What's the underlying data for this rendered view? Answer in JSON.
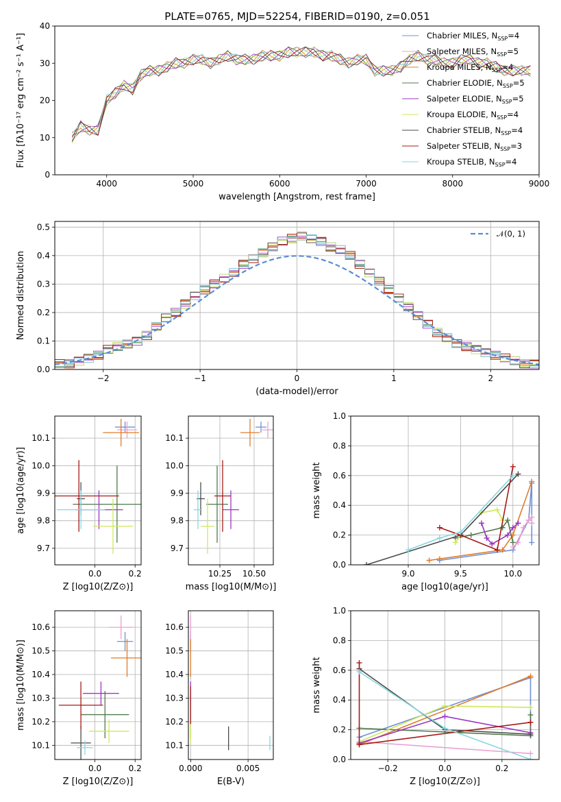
{
  "title": "PLATE=0765, MJD=52254, FIBERID=0190, z=0.051",
  "series_colors": [
    "#6f8fd6",
    "#e8a0d0",
    "#e07b28",
    "#4f7a4a",
    "#9b35c0",
    "#cfe85a",
    "#4a4a4a",
    "#a81818",
    "#86d6e0"
  ],
  "chart_data": [
    {
      "id": "spectrum",
      "type": "line",
      "xlabel": "wavelength [Angstrom, rest frame]",
      "ylabel": "Flux [fλ10⁻¹⁷ erg cm⁻² s⁻¹ A⁻¹]",
      "xlim": [
        3400,
        9000
      ],
      "ylim": [
        0,
        40
      ],
      "xticks": [
        4000,
        5000,
        6000,
        7000,
        8000,
        9000
      ],
      "yticks": [
        0,
        10,
        20,
        30,
        40
      ],
      "grid": false,
      "legend_position": "top-right",
      "x": [
        3600,
        3700,
        3800,
        3900,
        4000,
        4100,
        4200,
        4300,
        4400,
        4500,
        4600,
        4700,
        4800,
        4900,
        5000,
        5100,
        5200,
        5300,
        5400,
        5500,
        5600,
        5700,
        5800,
        5900,
        6000,
        6100,
        6200,
        6300,
        6400,
        6500,
        6600,
        6700,
        6800,
        6900,
        7000,
        7100,
        7200,
        7300,
        7400,
        7500,
        7600,
        7700,
        7800,
        7900,
        8000,
        8100,
        8200,
        8300,
        8400,
        8500,
        8600,
        8700,
        8800,
        8900
      ],
      "y": [
        10,
        13,
        12,
        12,
        20,
        22,
        24,
        23,
        27,
        28,
        28,
        29,
        30,
        30,
        31,
        31,
        30,
        31,
        32,
        31,
        31,
        31,
        32,
        32,
        32,
        33,
        33,
        33,
        33,
        32,
        32,
        31,
        30,
        31,
        31,
        28,
        28,
        28,
        29,
        31,
        32,
        31,
        31,
        30,
        30,
        31,
        31,
        30,
        30,
        29,
        28,
        28,
        28,
        28
      ],
      "series": [
        {
          "name": "Chabrier MILES, N",
          "sub": "SSP",
          "suffix": "=4"
        },
        {
          "name": "Salpeter MILES, N",
          "sub": "SSP",
          "suffix": "=5"
        },
        {
          "name": "Kroupa MILES, N",
          "sub": "SSP",
          "suffix": "=4"
        },
        {
          "name": "Chabrier ELODIE, N",
          "sub": "SSP",
          "suffix": "=5"
        },
        {
          "name": "Salpeter ELODIE, N",
          "sub": "SSP",
          "suffix": "=5"
        },
        {
          "name": "Kroupa ELODIE, N",
          "sub": "SSP",
          "suffix": "=4"
        },
        {
          "name": "Chabrier STELIB, N",
          "sub": "SSP",
          "suffix": "=4"
        },
        {
          "name": "Salpeter STELIB, N",
          "sub": "SSP",
          "suffix": "=3"
        },
        {
          "name": "Kroupa STELIB, N",
          "sub": "SSP",
          "suffix": "=4"
        }
      ]
    },
    {
      "id": "residuals",
      "type": "line",
      "xlabel": "(data-model)/error",
      "ylabel": "Normed distribution",
      "xlim": [
        -2.5,
        2.5
      ],
      "ylim": [
        0,
        0.52
      ],
      "xticks": [
        -2,
        -1,
        0,
        1,
        2
      ],
      "yticks": [
        0.0,
        0.1,
        0.2,
        0.3,
        0.4,
        0.5
      ],
      "grid": true,
      "legend_position": "top-right",
      "legend": [
        "𝒩(0, 1)"
      ],
      "x": [
        -2.45,
        -2.35,
        -2.25,
        -2.15,
        -2.05,
        -1.95,
        -1.85,
        -1.75,
        -1.65,
        -1.55,
        -1.45,
        -1.35,
        -1.25,
        -1.15,
        -1.05,
        -0.95,
        -0.85,
        -0.75,
        -0.65,
        -0.55,
        -0.45,
        -0.35,
        -0.25,
        -0.15,
        -0.05,
        0.05,
        0.15,
        0.25,
        0.35,
        0.45,
        0.55,
        0.65,
        0.75,
        0.85,
        0.95,
        1.05,
        1.15,
        1.25,
        1.35,
        1.45,
        1.55,
        1.65,
        1.75,
        1.85,
        1.95,
        2.05,
        2.15,
        2.25,
        2.35,
        2.45
      ],
      "y": [
        0.02,
        0.02,
        0.03,
        0.04,
        0.05,
        0.07,
        0.08,
        0.09,
        0.1,
        0.12,
        0.15,
        0.18,
        0.2,
        0.23,
        0.26,
        0.28,
        0.3,
        0.32,
        0.34,
        0.37,
        0.39,
        0.41,
        0.43,
        0.45,
        0.46,
        0.47,
        0.46,
        0.45,
        0.43,
        0.42,
        0.4,
        0.37,
        0.34,
        0.31,
        0.28,
        0.25,
        0.22,
        0.19,
        0.16,
        0.13,
        0.11,
        0.09,
        0.08,
        0.07,
        0.06,
        0.05,
        0.04,
        0.03,
        0.02,
        0.02
      ]
    },
    {
      "id": "age-vs-z",
      "type": "scatter",
      "xlabel": "Z [log10(Z/Z⊙)]",
      "ylabel": "age  [log10(age/yr)]",
      "xlim": [
        -0.2,
        0.23
      ],
      "ylim": [
        9.64,
        10.18
      ],
      "xticks": [
        0.0,
        0.2
      ],
      "yticks": [
        9.7,
        9.8,
        9.9,
        10.0,
        10.1
      ],
      "grid": true,
      "points": [
        {
          "x": 0.15,
          "y": 10.14,
          "xerr": 0.05,
          "yerr": 0.02
        },
        {
          "x": 0.16,
          "y": 10.13,
          "xerr": 0.05,
          "yerr": 0.03
        },
        {
          "x": 0.13,
          "y": 10.12,
          "xerr": 0.09,
          "yerr": 0.05
        },
        {
          "x": 0.11,
          "y": 9.86,
          "xerr": 0.22,
          "yerr": 0.14
        },
        {
          "x": 0.02,
          "y": 9.84,
          "xerr": 0.12,
          "yerr": 0.07
        },
        {
          "x": 0.09,
          "y": 9.78,
          "xerr": 0.1,
          "yerr": 0.1
        },
        {
          "x": -0.07,
          "y": 9.88,
          "xerr": 0.02,
          "yerr": 0.06
        },
        {
          "x": -0.08,
          "y": 9.89,
          "xerr": 0.2,
          "yerr": 0.13
        },
        {
          "x": -0.07,
          "y": 9.84,
          "xerr": 0.12,
          "yerr": 0.07
        }
      ]
    },
    {
      "id": "age-vs-mass",
      "type": "scatter",
      "xlabel": "mass [log10(M/M⊙)]",
      "ylabel": "",
      "xlim": [
        10.02,
        10.64
      ],
      "ylim": [
        9.64,
        10.18
      ],
      "xticks": [
        10.25,
        10.5
      ],
      "yticks": [
        9.7,
        9.8,
        9.9,
        10.0,
        10.1
      ],
      "grid": true,
      "points": [
        {
          "x": 10.55,
          "y": 10.14,
          "xerr": 0.04,
          "yerr": 0.02
        },
        {
          "x": 10.6,
          "y": 10.13,
          "xerr": 0.04,
          "yerr": 0.03
        },
        {
          "x": 10.47,
          "y": 10.12,
          "xerr": 0.07,
          "yerr": 0.05
        },
        {
          "x": 10.23,
          "y": 9.86,
          "xerr": 0.08,
          "yerr": 0.14
        },
        {
          "x": 10.33,
          "y": 9.84,
          "xerr": 0.06,
          "yerr": 0.07
        },
        {
          "x": 10.16,
          "y": 9.78,
          "xerr": 0.05,
          "yerr": 0.1
        },
        {
          "x": 10.11,
          "y": 9.88,
          "xerr": 0.03,
          "yerr": 0.06
        },
        {
          "x": 10.27,
          "y": 9.89,
          "xerr": 0.06,
          "yerr": 0.13
        },
        {
          "x": 10.09,
          "y": 9.84,
          "xerr": 0.03,
          "yerr": 0.07
        }
      ]
    },
    {
      "id": "weight-vs-age",
      "type": "line",
      "xlabel": "age  [log10(age/yr)]",
      "ylabel": "mass weight",
      "xlim": [
        8.45,
        10.25
      ],
      "ylim": [
        0.0,
        1.0
      ],
      "xticks": [
        9.0,
        9.5,
        10.0
      ],
      "yticks": [
        0.0,
        0.2,
        0.4,
        0.6,
        0.8,
        1.0
      ],
      "grid": true,
      "lines": [
        {
          "x": [
            9.3,
            10.0,
            10.15,
            10.18,
            10.18
          ],
          "y": [
            0.03,
            0.1,
            0.3,
            0.55,
            0.15
          ]
        },
        {
          "x": [
            10.0,
            10.05,
            10.1,
            10.15,
            10.18,
            10.18
          ],
          "y": [
            0.12,
            0.15,
            0.25,
            0.3,
            0.32,
            0.28
          ]
        },
        {
          "x": [
            9.2,
            9.3,
            9.9,
            10.0,
            10.18
          ],
          "y": [
            0.03,
            0.04,
            0.1,
            0.2,
            0.56
          ]
        },
        {
          "x": [
            9.45,
            9.6,
            9.9,
            9.95,
            10.0
          ],
          "y": [
            0.18,
            0.2,
            0.25,
            0.3,
            0.15
          ]
        },
        {
          "x": [
            9.7,
            9.75,
            9.8,
            9.95,
            10.0,
            10.05
          ],
          "y": [
            0.28,
            0.18,
            0.14,
            0.2,
            0.25,
            0.28
          ]
        },
        {
          "x": [
            9.45,
            9.5,
            9.7,
            9.85,
            9.9
          ],
          "y": [
            0.15,
            0.2,
            0.35,
            0.37,
            0.3
          ]
        },
        {
          "x": [
            8.6,
            9.5,
            10.05
          ],
          "y": [
            0.0,
            0.2,
            0.61
          ]
        },
        {
          "x": [
            9.3,
            9.5,
            9.85,
            10.0
          ],
          "y": [
            0.25,
            0.2,
            0.1,
            0.66
          ]
        },
        {
          "x": [
            9.0,
            9.3,
            9.5,
            10.0
          ],
          "y": [
            0.1,
            0.18,
            0.22,
            0.6
          ]
        }
      ]
    },
    {
      "id": "mass-vs-z",
      "type": "scatter",
      "xlabel": "Z [log10(Z/Z⊙)]",
      "ylabel": "mass [log10(M/M⊙)]",
      "xlim": [
        -0.2,
        0.23
      ],
      "ylim": [
        10.04,
        10.67
      ],
      "xticks": [
        0.0,
        0.2
      ],
      "yticks": [
        10.1,
        10.2,
        10.3,
        10.4,
        10.5,
        10.6
      ],
      "grid": true,
      "points": [
        {
          "x": 0.15,
          "y": 10.54,
          "xerr": 0.04,
          "yerr": 0.04
        },
        {
          "x": 0.13,
          "y": 10.6,
          "xerr": 0.06,
          "yerr": 0.05
        },
        {
          "x": 0.16,
          "y": 10.47,
          "xerr": 0.08,
          "yerr": 0.08
        },
        {
          "x": 0.05,
          "y": 10.23,
          "xerr": 0.12,
          "yerr": 0.1
        },
        {
          "x": 0.03,
          "y": 10.32,
          "xerr": 0.09,
          "yerr": 0.05
        },
        {
          "x": 0.07,
          "y": 10.16,
          "xerr": 0.1,
          "yerr": 0.05
        },
        {
          "x": -0.07,
          "y": 10.11,
          "xerr": 0.05,
          "yerr": 0.07
        },
        {
          "x": -0.07,
          "y": 10.27,
          "xerr": 0.11,
          "yerr": 0.1
        },
        {
          "x": -0.05,
          "y": 10.09,
          "xerr": 0.04,
          "yerr": 0.03
        }
      ]
    },
    {
      "id": "mass-vs-ebv",
      "type": "scatter",
      "xlabel": "E(B-V)",
      "ylabel": "",
      "xlim": [
        -0.0002,
        0.0072
      ],
      "ylim": [
        10.04,
        10.67
      ],
      "xticks": [
        0.0,
        0.005
      ],
      "yticks": [
        10.1,
        10.2,
        10.3,
        10.4,
        10.5,
        10.6
      ],
      "grid": true,
      "points": [
        {
          "x": 0.0,
          "y": 10.54,
          "xerr": 0.0,
          "yerr": 0.04
        },
        {
          "x": 0.0,
          "y": 10.6,
          "xerr": 0.0,
          "yerr": 0.05
        },
        {
          "x": 0.0,
          "y": 10.47,
          "xerr": 0.0,
          "yerr": 0.08
        },
        {
          "x": 0.0,
          "y": 10.23,
          "xerr": 0.0,
          "yerr": 0.1
        },
        {
          "x": 0.0,
          "y": 10.32,
          "xerr": 0.0,
          "yerr": 0.05
        },
        {
          "x": 0.0,
          "y": 10.16,
          "xerr": 0.0,
          "yerr": 0.05
        },
        {
          "x": 0.0033,
          "y": 10.13,
          "xerr": 0.0,
          "yerr": 0.05
        },
        {
          "x": 0.0,
          "y": 10.27,
          "xerr": 0.0,
          "yerr": 0.08
        },
        {
          "x": 0.0069,
          "y": 10.11,
          "xerr": 0.0,
          "yerr": 0.03
        }
      ]
    },
    {
      "id": "weight-vs-z",
      "type": "line",
      "xlabel": "Z [log10(Z/Z⊙)]",
      "ylabel": "mass weight",
      "xlim": [
        -0.33,
        0.33
      ],
      "ylim": [
        0.0,
        1.0
      ],
      "xticks": [
        -0.2,
        0.0,
        0.2
      ],
      "yticks": [
        0.0,
        0.2,
        0.4,
        0.6,
        0.8,
        1.0
      ],
      "grid": true,
      "lines": [
        {
          "x": [
            -0.3,
            0.3,
            0.3
          ],
          "y": [
            0.15,
            0.55,
            0.16
          ]
        },
        {
          "x": [
            -0.3,
            0.3
          ],
          "y": [
            0.12,
            0.04
          ]
        },
        {
          "x": [
            -0.3,
            0.3
          ],
          "y": [
            0.1,
            0.56
          ]
        },
        {
          "x": [
            -0.3,
            0.3,
            0.3
          ],
          "y": [
            0.21,
            0.16,
            0.3
          ]
        },
        {
          "x": [
            -0.3,
            0.0,
            0.3
          ],
          "y": [
            0.11,
            0.29,
            0.18
          ]
        },
        {
          "x": [
            -0.3,
            0.0,
            0.3
          ],
          "y": [
            0.12,
            0.36,
            0.35
          ]
        },
        {
          "x": [
            -0.3,
            0.0,
            0.3
          ],
          "y": [
            0.61,
            0.2,
            0.17
          ]
        },
        {
          "x": [
            -0.3,
            -0.3,
            0.3
          ],
          "y": [
            0.65,
            0.1,
            0.25
          ]
        },
        {
          "x": [
            -0.3,
            0.0,
            0.3
          ],
          "y": [
            0.59,
            0.21,
            0.0
          ]
        }
      ]
    }
  ]
}
